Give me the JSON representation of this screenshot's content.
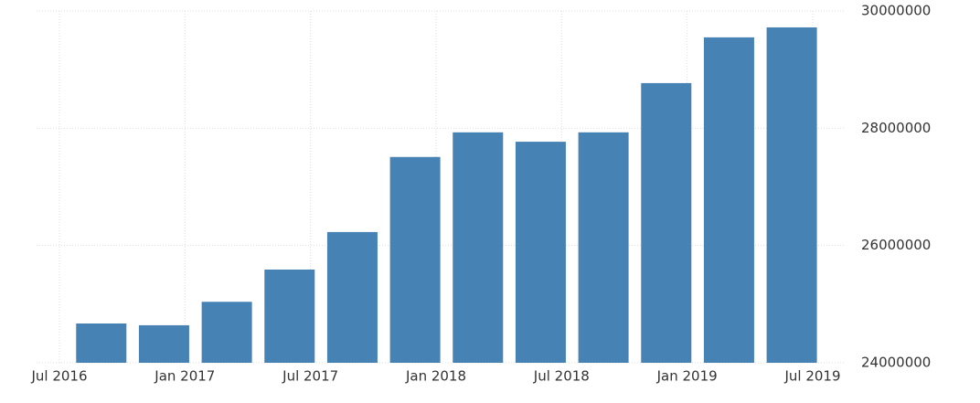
{
  "chart_data": {
    "type": "bar",
    "x": [
      "2016-09",
      "2016-12",
      "2017-03",
      "2017-06",
      "2017-09",
      "2017-12",
      "2018-03",
      "2018-06",
      "2018-09",
      "2018-12",
      "2019-03",
      "2019-06"
    ],
    "values": [
      24670000,
      24640000,
      25040000,
      25590000,
      26230000,
      27510000,
      27930000,
      27770000,
      27930000,
      28770000,
      29550000,
      29720000
    ],
    "color": "#4682b4",
    "xticks": [
      {
        "value": "2016-07",
        "label": "Jul 2016"
      },
      {
        "value": "2017-01",
        "label": "Jan 2017"
      },
      {
        "value": "2017-07",
        "label": "Jul 2017"
      },
      {
        "value": "2018-01",
        "label": "Jan 2018"
      },
      {
        "value": "2018-07",
        "label": "Jul 2018"
      },
      {
        "value": "2019-01",
        "label": "Jan 2019"
      },
      {
        "value": "2019-07",
        "label": "Jul 2019"
      }
    ],
    "ylim": [
      24000000,
      30000000
    ],
    "yticks": [
      24000000,
      26000000,
      28000000,
      30000000
    ],
    "grid": true
  }
}
